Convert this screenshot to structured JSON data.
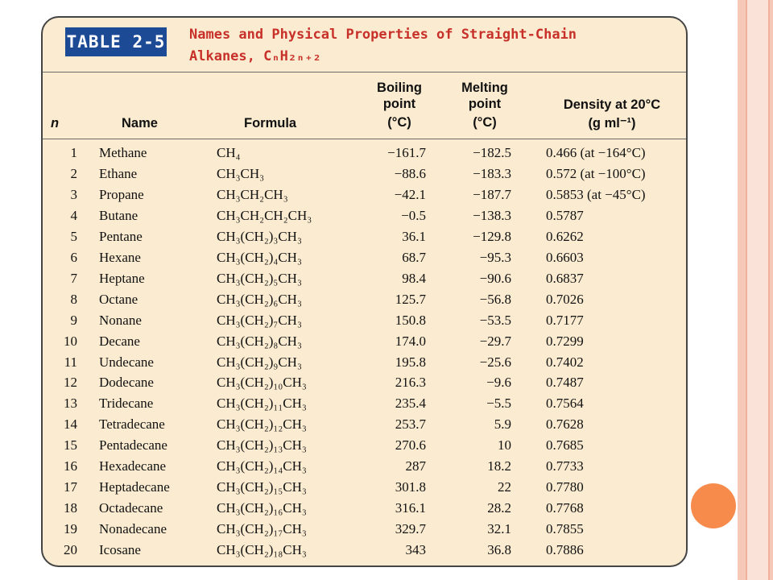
{
  "table": {
    "label": "TABLE 2-5",
    "caption_line1": "Names and Physical Properties of Straight-Chain",
    "caption_line2": "Alkanes, CₙH₂ₙ₊₂",
    "headers": {
      "n": "n",
      "name": "Name",
      "formula": "Formula",
      "bp_line1": "Boiling",
      "bp_line2": "point",
      "bp_line3": "(°C)",
      "mp_line1": "Melting",
      "mp_line2": "point",
      "mp_line3": "(°C)",
      "density_line1": "Density at 20°C",
      "density_line2": "(g ml⁻¹)"
    },
    "rows": [
      {
        "n": "1",
        "name": "Methane",
        "formula": "CH₄",
        "bp": "−161.7",
        "mp": "−182.5",
        "density": "0.466 (at −164°C)"
      },
      {
        "n": "2",
        "name": "Ethane",
        "formula": "CH₃CH₃",
        "bp": "−88.6",
        "mp": "−183.3",
        "density": "0.572 (at −100°C)"
      },
      {
        "n": "3",
        "name": "Propane",
        "formula": "CH₃CH₂CH₃",
        "bp": "−42.1",
        "mp": "−187.7",
        "density": "0.5853 (at −45°C)"
      },
      {
        "n": "4",
        "name": "Butane",
        "formula": "CH₃CH₂CH₂CH₃",
        "bp": "−0.5",
        "mp": "−138.3",
        "density": "0.5787"
      },
      {
        "n": "5",
        "name": "Pentane",
        "formula": "CH₃(CH₂)₃CH₃",
        "bp": "36.1",
        "mp": "−129.8",
        "density": "0.6262"
      },
      {
        "n": "6",
        "name": "Hexane",
        "formula": "CH₃(CH₂)₄CH₃",
        "bp": "68.7",
        "mp": "−95.3",
        "density": "0.6603"
      },
      {
        "n": "7",
        "name": "Heptane",
        "formula": "CH₃(CH₂)₅CH₃",
        "bp": "98.4",
        "mp": "−90.6",
        "density": "0.6837"
      },
      {
        "n": "8",
        "name": "Octane",
        "formula": "CH₃(CH₂)₆CH₃",
        "bp": "125.7",
        "mp": "−56.8",
        "density": "0.7026"
      },
      {
        "n": "9",
        "name": "Nonane",
        "formula": "CH₃(CH₂)₇CH₃",
        "bp": "150.8",
        "mp": "−53.5",
        "density": "0.7177"
      },
      {
        "n": "10",
        "name": "Decane",
        "formula": "CH₃(CH₂)₈CH₃",
        "bp": "174.0",
        "mp": "−29.7",
        "density": "0.7299"
      },
      {
        "n": "11",
        "name": "Undecane",
        "formula": "CH₃(CH₂)₉CH₃",
        "bp": "195.8",
        "mp": "−25.6",
        "density": "0.7402"
      },
      {
        "n": "12",
        "name": "Dodecane",
        "formula": "CH₃(CH₂)₁₀CH₃",
        "bp": "216.3",
        "mp": "−9.6",
        "density": "0.7487"
      },
      {
        "n": "13",
        "name": "Tridecane",
        "formula": "CH₃(CH₂)₁₁CH₃",
        "bp": "235.4",
        "mp": "−5.5",
        "density": "0.7564"
      },
      {
        "n": "14",
        "name": "Tetradecane",
        "formula": "CH₃(CH₂)₁₂CH₃",
        "bp": "253.7",
        "mp": "5.9",
        "density": "0.7628"
      },
      {
        "n": "15",
        "name": "Pentadecane",
        "formula": "CH₃(CH₂)₁₃CH₃",
        "bp": "270.6",
        "mp": "10",
        "density": "0.7685"
      },
      {
        "n": "16",
        "name": "Hexadecane",
        "formula": "CH₃(CH₂)₁₄CH₃",
        "bp": "287",
        "mp": "18.2",
        "density": "0.7733"
      },
      {
        "n": "17",
        "name": "Heptadecane",
        "formula": "CH₃(CH₂)₁₅CH₃",
        "bp": "301.8",
        "mp": "22",
        "density": "0.7780"
      },
      {
        "n": "18",
        "name": "Octadecane",
        "formula": "CH₃(CH₂)₁₆CH₃",
        "bp": "316.1",
        "mp": "28.2",
        "density": "0.7768"
      },
      {
        "n": "19",
        "name": "Nonadecane",
        "formula": "CH₃(CH₂)₁₇CH₃",
        "bp": "329.7",
        "mp": "32.1",
        "density": "0.7855"
      },
      {
        "n": "20",
        "name": "Icosane",
        "formula": "CH₃(CH₂)₁₈CH₃",
        "bp": "343",
        "mp": "36.8",
        "density": "0.7886"
      }
    ]
  }
}
